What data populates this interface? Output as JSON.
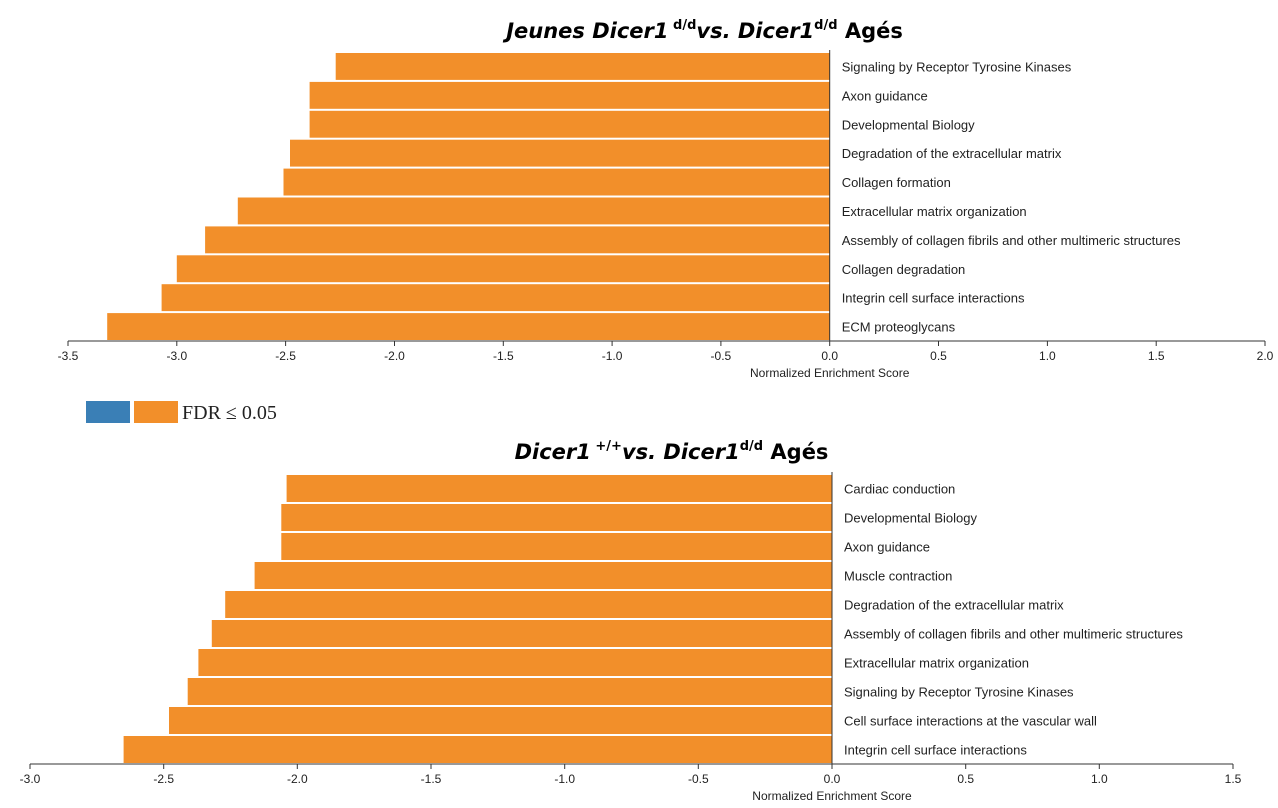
{
  "legend": {
    "label": "FDR ≤ 0.05",
    "colors": [
      "#3a7fb6",
      "#f28f2a"
    ]
  },
  "chart_data": [
    {
      "type": "bar",
      "orientation": "horizontal",
      "title_parts": [
        {
          "text": "Jeunes Dicer1",
          "style": "italic"
        },
        {
          "text": " d/d",
          "style": "super"
        },
        {
          "text": "vs. Dicer1",
          "style": "italic"
        },
        {
          "text": "d/d",
          "style": "super"
        },
        {
          "text": " Agés",
          "style": "normal"
        }
      ],
      "xlabel": "Normalized Enrichment Score",
      "xlim": [
        -3.5,
        2.0
      ],
      "xticks": [
        "-3.5",
        "-3.0",
        "-2.5",
        "-2.0",
        "-1.5",
        "-1.0",
        "-0.5",
        "0.0",
        "0.5",
        "1.0",
        "1.5",
        "2.0"
      ],
      "bar_color": "#f28f2a",
      "categories": [
        "Signaling by Receptor Tyrosine Kinases",
        "Axon guidance",
        "Developmental Biology",
        "Degradation of the extracellular matrix",
        "Collagen formation",
        "Extracellular matrix organization",
        "Assembly of collagen fibrils and other multimeric structures",
        "Collagen degradation",
        "Integrin cell surface interactions",
        "ECM proteoglycans"
      ],
      "values": [
        -2.27,
        -2.39,
        -2.39,
        -2.48,
        -2.51,
        -2.72,
        -2.87,
        -3.0,
        -3.07,
        -3.32
      ]
    },
    {
      "type": "bar",
      "orientation": "horizontal",
      "title_parts": [
        {
          "text": "Dicer1",
          "style": "italic"
        },
        {
          "text": " +/+",
          "style": "super"
        },
        {
          "text": "vs. Dicer1",
          "style": "italic"
        },
        {
          "text": "d/d",
          "style": "super"
        },
        {
          "text": " Agés",
          "style": "normal"
        }
      ],
      "xlabel": "Normalized Enrichment Score",
      "xlim": [
        -3.0,
        1.5
      ],
      "xticks": [
        "-3.0",
        "-2.5",
        "-2.0",
        "-1.5",
        "-1.0",
        "-0.5",
        "0.0",
        "0.5",
        "1.0",
        "1.5"
      ],
      "bar_color": "#f28f2a",
      "categories": [
        "Cardiac conduction",
        "Developmental Biology",
        "Axon guidance",
        "Muscle contraction",
        "Degradation of the extracellular matrix",
        "Assembly of collagen fibrils and other multimeric structures",
        "Extracellular matrix organization",
        "Signaling by Receptor Tyrosine Kinases",
        "Cell surface interactions at the vascular wall",
        "Integrin cell surface interactions"
      ],
      "values": [
        -2.04,
        -2.06,
        -2.06,
        -2.16,
        -2.27,
        -2.32,
        -2.37,
        -2.41,
        -2.48,
        -2.65
      ]
    }
  ]
}
